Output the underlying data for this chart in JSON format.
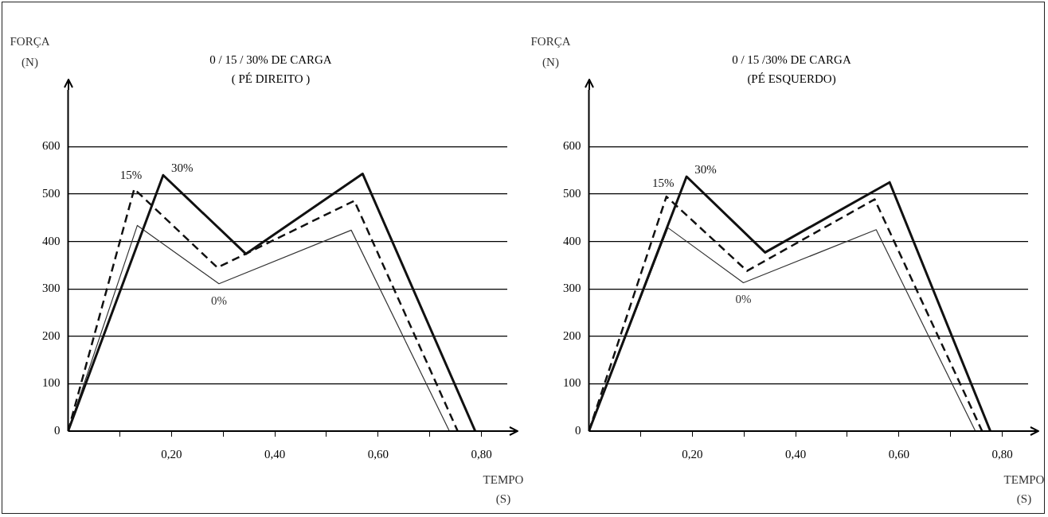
{
  "chart_data": [
    {
      "type": "line",
      "title": "0 / 15 / 30% DE CARGA",
      "subtitle": "( PÉ DIREITO )",
      "xlabel": "TEMPO (S)",
      "ylabel": "FORÇA (N)",
      "xlim": [
        0,
        0.85
      ],
      "ylim": [
        0,
        720
      ],
      "xticks": [
        {
          "value": 0.1,
          "label": null
        },
        {
          "value": 0.2,
          "label": "0,20"
        },
        {
          "value": 0.3,
          "label": null
        },
        {
          "value": 0.4,
          "label": "0,40"
        },
        {
          "value": 0.5,
          "label": null
        },
        {
          "value": 0.6,
          "label": "0,60"
        },
        {
          "value": 0.7,
          "label": null
        },
        {
          "value": 0.8,
          "label": "0,80"
        }
      ],
      "yticks": [
        0,
        100,
        200,
        300,
        400,
        500,
        600
      ],
      "grid": "y",
      "marker": "none",
      "series": [
        {
          "name": "30%",
          "color": "#111111",
          "line_style": "solid",
          "x": [
            0,
            0.184,
            0.344,
            0.57,
            0.788
          ],
          "values": [
            0,
            540,
            374,
            543,
            0
          ]
        },
        {
          "name": "15%",
          "color": "#111111",
          "line_style": "dashed",
          "x": [
            0,
            0.128,
            0.289,
            0.554,
            0.754
          ],
          "values": [
            0,
            511,
            345,
            486,
            0
          ]
        },
        {
          "name": "0%",
          "color": "#333333",
          "line_style": "solid",
          "x": [
            0,
            0.134,
            0.292,
            0.548,
            0.738
          ],
          "values": [
            0,
            434,
            311,
            424,
            0
          ]
        }
      ]
    },
    {
      "type": "line",
      "title": "0 / 15 /30% DE CARGA",
      "subtitle": "(PÉ ESQUERDO)",
      "xlabel": "TEMPO (S)",
      "ylabel": "FORÇA (N)",
      "xlim": [
        0,
        0.85
      ],
      "ylim": [
        0,
        720
      ],
      "xticks": [
        {
          "value": 0.1,
          "label": null
        },
        {
          "value": 0.2,
          "label": "0,20"
        },
        {
          "value": 0.3,
          "label": null
        },
        {
          "value": 0.4,
          "label": "0,40"
        },
        {
          "value": 0.5,
          "label": null
        },
        {
          "value": 0.6,
          "label": "0,60"
        },
        {
          "value": 0.7,
          "label": null
        },
        {
          "value": 0.8,
          "label": "0,80"
        }
      ],
      "yticks": [
        0,
        100,
        200,
        300,
        400,
        500,
        600
      ],
      "grid": "y",
      "marker": "none",
      "series": [
        {
          "name": "30%",
          "color": "#111111",
          "line_style": "solid",
          "x": [
            0,
            0.189,
            0.341,
            0.582,
            0.777
          ],
          "values": [
            0,
            537,
            377,
            525,
            0
          ]
        },
        {
          "name": "15%",
          "color": "#111111",
          "line_style": "dashed",
          "x": [
            0,
            0.15,
            0.306,
            0.553,
            0.761
          ],
          "values": [
            0,
            495,
            338,
            489,
            0
          ]
        },
        {
          "name": "0%",
          "color": "#333333",
          "line_style": "solid",
          "x": [
            0,
            0.153,
            0.299,
            0.556,
            0.748
          ],
          "values": [
            0,
            429,
            313,
            425,
            0
          ]
        }
      ]
    }
  ]
}
